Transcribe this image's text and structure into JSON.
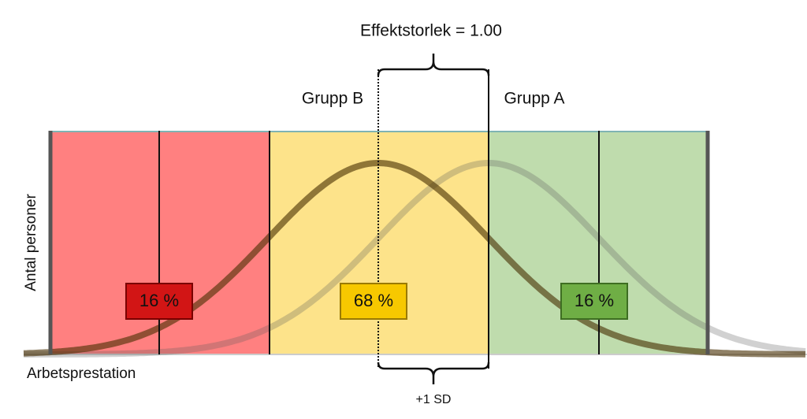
{
  "header": {
    "title": "Effektstorlek = 1.00"
  },
  "groups": {
    "b": "Grupp B",
    "a": "Grupp A"
  },
  "axes": {
    "y": "Antal personer",
    "x": "Arbetsprestation"
  },
  "regions": [
    {
      "label": "16 %"
    },
    {
      "label": "68 %"
    },
    {
      "label": "16 %"
    }
  ],
  "bracket": {
    "label": "+1 SD"
  }
}
